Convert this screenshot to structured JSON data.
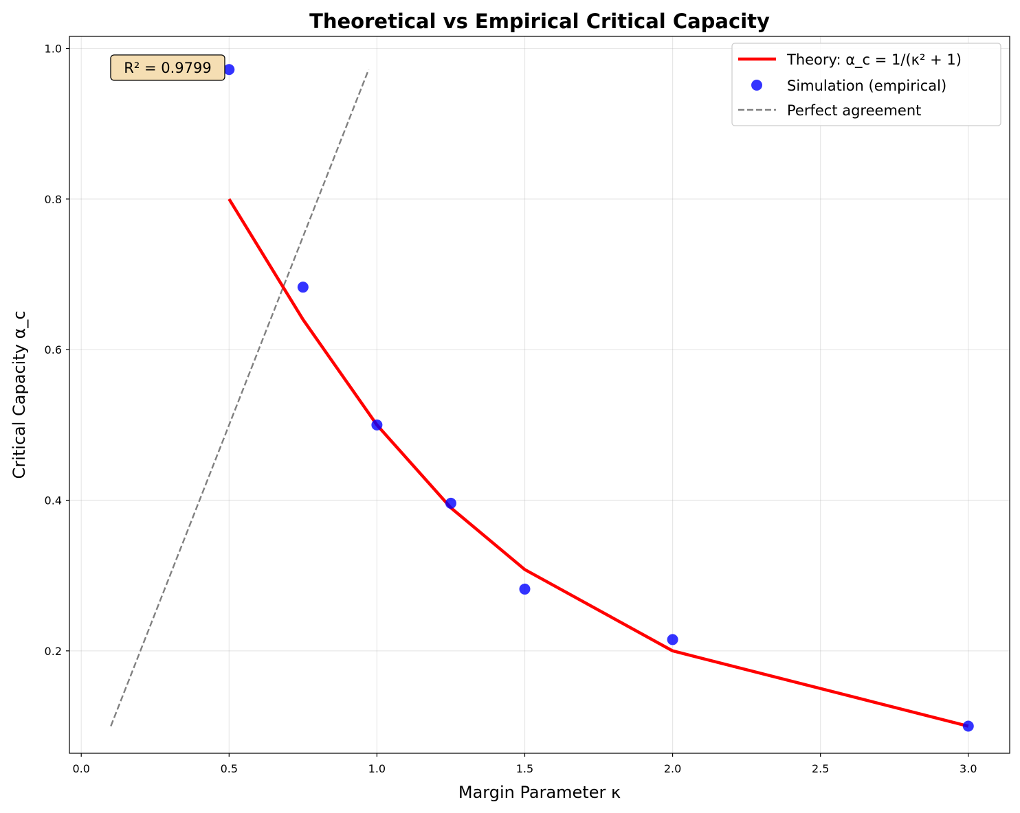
{
  "chart_data": {
    "type": "line",
    "title": "Theoretical vs Empirical Critical Capacity",
    "xlabel": "Margin Parameter κ",
    "ylabel": "Critical Capacity α_c",
    "xlim": [
      -0.04,
      3.14
    ],
    "ylim": [
      0.064,
      1.016
    ],
    "xticks": [
      0.0,
      0.5,
      1.0,
      1.5,
      2.0,
      2.5,
      3.0
    ],
    "xtick_labels": [
      "0.0",
      "0.5",
      "1.0",
      "1.5",
      "2.0",
      "2.5",
      "3.0"
    ],
    "yticks": [
      0.2,
      0.4,
      0.6,
      0.8,
      1.0
    ],
    "ytick_labels": [
      "0.2",
      "0.4",
      "0.6",
      "0.8",
      "1.0"
    ],
    "grid": true,
    "legend_position": "top-right",
    "annotation": "R² = 0.9799",
    "series": [
      {
        "name": "Theory: α_c = 1/(κ² + 1)",
        "style": "line",
        "color": "#ff0000",
        "x": [
          0.5,
          0.75,
          1.0,
          1.25,
          1.5,
          2.0,
          3.0
        ],
        "y": [
          0.8,
          0.64,
          0.5,
          0.39,
          0.308,
          0.2,
          0.1
        ]
      },
      {
        "name": "Simulation (empirical)",
        "style": "scatter",
        "color": "#0000ff",
        "x": [
          0.5,
          0.75,
          1.0,
          1.25,
          1.5,
          2.0,
          3.0
        ],
        "y": [
          0.972,
          0.683,
          0.5,
          0.396,
          0.282,
          0.215,
          0.1
        ]
      },
      {
        "name": "Perfect agreement",
        "style": "dashed",
        "color": "#808080",
        "x": [
          0.1,
          0.972
        ],
        "y": [
          0.1,
          0.972
        ]
      }
    ]
  }
}
